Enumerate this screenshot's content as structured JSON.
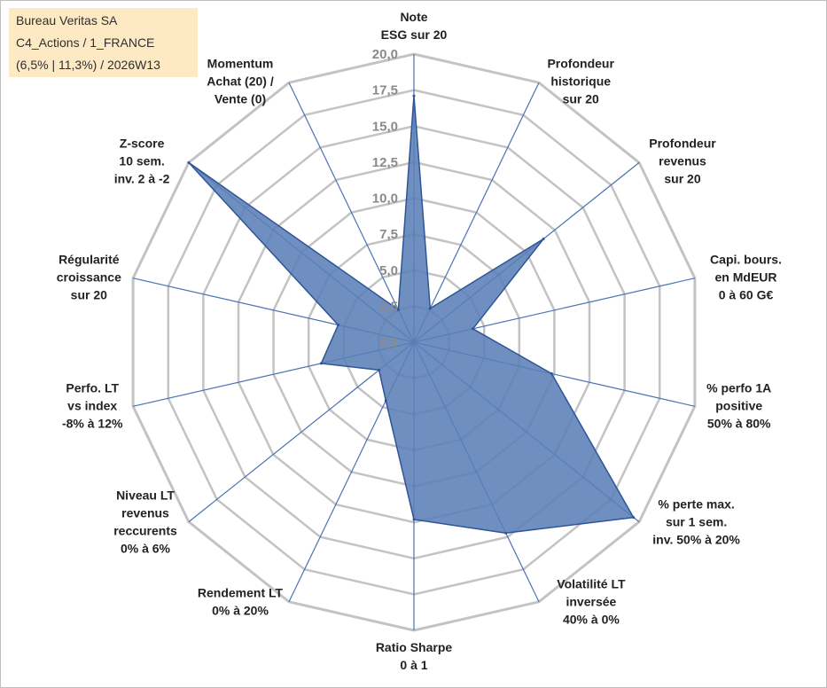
{
  "title_box": {
    "line1": "Bureau Veritas SA",
    "line2": "C4_Actions / 1_FRANCE",
    "line3": "(6,5% | 11,3%) / 2026W13"
  },
  "chart_data": {
    "type": "radar",
    "rmin": 0,
    "rmax": 20,
    "ticks": [
      "0,0",
      "2,5",
      "5,0",
      "7,5",
      "10,0",
      "12,5",
      "15,0",
      "17,5",
      "20,0"
    ],
    "tick_values": [
      0,
      2.5,
      5,
      7.5,
      10,
      12.5,
      15,
      17.5,
      20
    ],
    "axes": [
      {
        "label": [
          "Note",
          "ESG sur 20"
        ],
        "value": 17.1
      },
      {
        "label": [
          "Profondeur",
          "historique",
          "sur 20"
        ],
        "value": 2.6
      },
      {
        "label": [
          "Profondeur",
          "revenus",
          "sur 20"
        ],
        "value": 11.5
      },
      {
        "label": [
          "Capi. bours.",
          "en MdEUR",
          "0 à 60 G€"
        ],
        "value": 4.2
      },
      {
        "label": [
          "% perfo 1A",
          "positive",
          "50% à 80%"
        ],
        "value": 9.8
      },
      {
        "label": [
          "% perte max.",
          "sur 1 sem.",
          "inv. 50% à 20%"
        ],
        "value": 19.5
      },
      {
        "label": [
          "Volatilité LT",
          "inversée",
          "40% à 0%"
        ],
        "value": 14.7
      },
      {
        "label": [
          "Ratio Sharpe",
          "0 à 1"
        ],
        "value": 12.3
      },
      {
        "label": [
          "Rendement LT",
          "0% à 20%"
        ],
        "value": 4.5
      },
      {
        "label": [
          "Niveau LT",
          "revenus",
          "reccurents",
          "0% à 6%"
        ],
        "value": 3.1
      },
      {
        "label": [
          "Perfo. LT",
          "vs index",
          "-8% à 12%"
        ],
        "value": 6.6
      },
      {
        "label": [
          "Régularité",
          "croissance",
          "sur 20"
        ],
        "value": 5.4
      },
      {
        "label": [
          "Z-score",
          "10 sem.",
          "inv. 2 à -2"
        ],
        "value": 20.0
      },
      {
        "label": [
          "Momentum",
          "Achat (20) /",
          "Vente (0)"
        ],
        "value": 2.5
      }
    ],
    "colors": {
      "grid": "#c3c3c3",
      "spokes": "#4a72b5",
      "fill": "#5a80b6",
      "stroke": "#2f5597",
      "ticks": "#8a8a8a"
    }
  }
}
